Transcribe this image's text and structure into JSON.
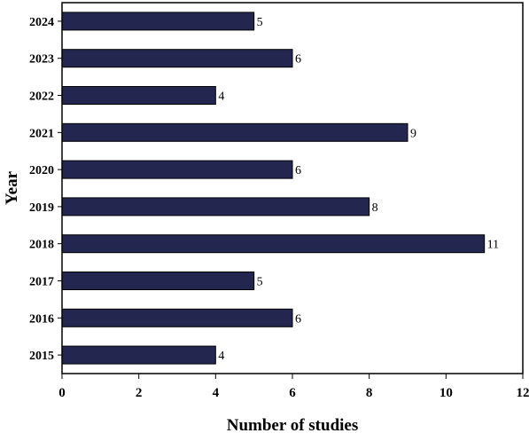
{
  "chart_data": {
    "type": "bar",
    "orientation": "horizontal",
    "categories": [
      "2024",
      "2023",
      "2022",
      "2021",
      "2020",
      "2019",
      "2018",
      "2017",
      "2016",
      "2015"
    ],
    "values": [
      5,
      6,
      4,
      9,
      6,
      8,
      11,
      5,
      6,
      4
    ],
    "data_labels": [
      "5",
      "6",
      "4",
      "9",
      "6",
      "8",
      "11",
      "5",
      "6",
      "4"
    ],
    "xlabel": "Number of studies",
    "ylabel": "Year",
    "xlim": [
      0,
      12
    ],
    "xticks": [
      "0",
      "2",
      "4",
      "6",
      "8",
      "10",
      "12"
    ],
    "grid": false,
    "legend": "none",
    "bar_color": "#23264f"
  }
}
